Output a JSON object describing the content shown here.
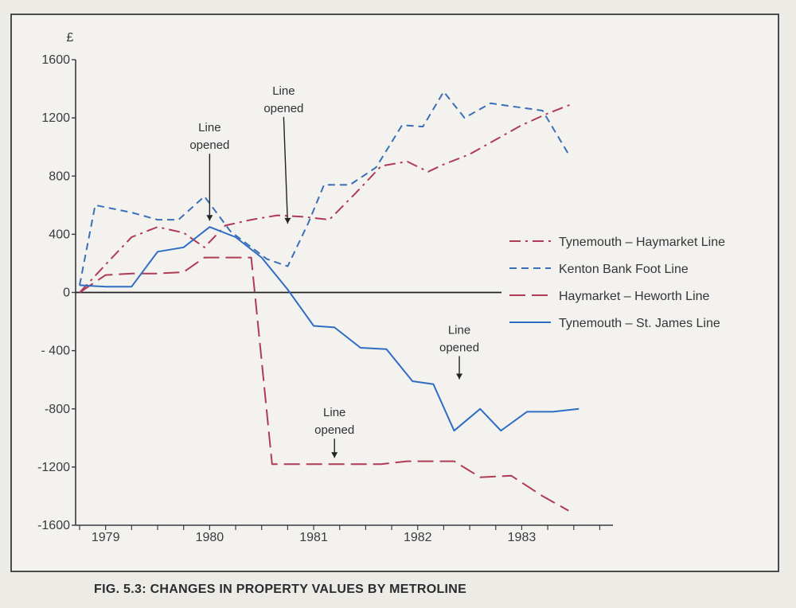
{
  "chart_data": {
    "type": "line",
    "title": "",
    "caption": "FIG. 5.3: CHANGES IN PROPERTY VALUES BY METROLINE",
    "ylabel": "£",
    "xlabel": "",
    "ylim": [
      -1600,
      1600
    ],
    "xlim": [
      1978.6,
      1983.65
    ],
    "y_ticks": [
      "1600",
      "1200",
      "800",
      "400",
      "0",
      "- 400",
      "-800",
      "-1200",
      "-1600"
    ],
    "y_tick_values": [
      1600,
      1200,
      800,
      400,
      0,
      -400,
      -800,
      -1200,
      -1600
    ],
    "x_ticks": [
      "1979",
      "1980",
      "1981",
      "1982",
      "1983"
    ],
    "x_tick_values": [
      1978.85,
      1979.85,
      1980.85,
      1981.85,
      1982.85
    ],
    "grid": false,
    "legend_position": "right",
    "series": [
      {
        "name": "Tynemouth – Haymarket Line",
        "style": "dash-dot",
        "color": "#b03a55",
        "x": [
          1978.6,
          1978.9,
          1979.1,
          1979.35,
          1979.6,
          1979.8,
          1980.0,
          1980.25,
          1980.5,
          1980.75,
          1981.0,
          1981.25,
          1981.5,
          1981.75,
          1981.95,
          1982.1,
          1982.35,
          1982.6,
          1982.85,
          1983.1,
          1983.35
        ],
        "y": [
          0,
          230,
          380,
          450,
          410,
          310,
          460,
          500,
          530,
          520,
          500,
          680,
          870,
          900,
          830,
          880,
          950,
          1050,
          1150,
          1230,
          1300
        ]
      },
      {
        "name": "Kenton Bank Foot Line",
        "style": "dashed",
        "color": "#3a6fb8",
        "x": [
          1978.6,
          1978.75,
          1979.1,
          1979.35,
          1979.55,
          1979.8,
          1980.05,
          1980.4,
          1980.6,
          1980.8,
          1980.95,
          1981.2,
          1981.45,
          1981.7,
          1981.9,
          1982.1,
          1982.3,
          1982.55,
          1982.75,
          1983.05,
          1983.3
        ],
        "y": [
          50,
          600,
          550,
          500,
          500,
          660,
          420,
          230,
          180,
          480,
          740,
          740,
          860,
          1150,
          1140,
          1380,
          1200,
          1300,
          1280,
          1250,
          950
        ]
      },
      {
        "name": "Haymarket – Heworth Line",
        "style": "long-dash",
        "color": "#b03a55",
        "x": [
          1978.6,
          1978.85,
          1979.1,
          1979.35,
          1979.6,
          1979.8,
          1980.0,
          1980.25,
          1980.45,
          1980.75,
          1980.95,
          1981.25,
          1981.5,
          1981.75,
          1982.0,
          1982.2,
          1982.45,
          1982.75,
          1983.05,
          1983.3
        ],
        "y": [
          0,
          120,
          130,
          130,
          140,
          240,
          240,
          240,
          -1180,
          -1180,
          -1180,
          -1180,
          -1180,
          -1160,
          -1160,
          -1160,
          -1270,
          -1260,
          -1400,
          -1500
        ]
      },
      {
        "name": "Tynemouth – St. James Line",
        "style": "solid",
        "color": "#2f6cc4",
        "x": [
          1978.6,
          1978.85,
          1979.1,
          1979.35,
          1979.6,
          1979.85,
          1980.1,
          1980.35,
          1980.6,
          1980.85,
          1981.05,
          1981.3,
          1981.55,
          1981.8,
          1982.0,
          1982.2,
          1982.45,
          1982.65,
          1982.9,
          1983.15,
          1983.4
        ],
        "y": [
          50,
          40,
          40,
          280,
          310,
          450,
          380,
          240,
          20,
          -230,
          -240,
          -380,
          -390,
          -610,
          -630,
          -950,
          -800,
          -950,
          -820,
          -820,
          -800
        ]
      }
    ],
    "annotations": [
      {
        "text": [
          "Line",
          "opened"
        ],
        "series": "Kenton Bank Foot Line",
        "x": 1979.85,
        "y": 450
      },
      {
        "text": [
          "Line",
          "opened"
        ],
        "series": "Kenton Bank Foot Line",
        "x": 1980.6,
        "y": 430
      },
      {
        "text": [
          "Line",
          "opened"
        ],
        "series": "Haymarket – Heworth Line",
        "x": 1981.05,
        "y": -1180
      },
      {
        "text": [
          "Line",
          "opened"
        ],
        "series": "Tynemouth – St. James Line",
        "x": 1982.25,
        "y": -640
      }
    ]
  }
}
